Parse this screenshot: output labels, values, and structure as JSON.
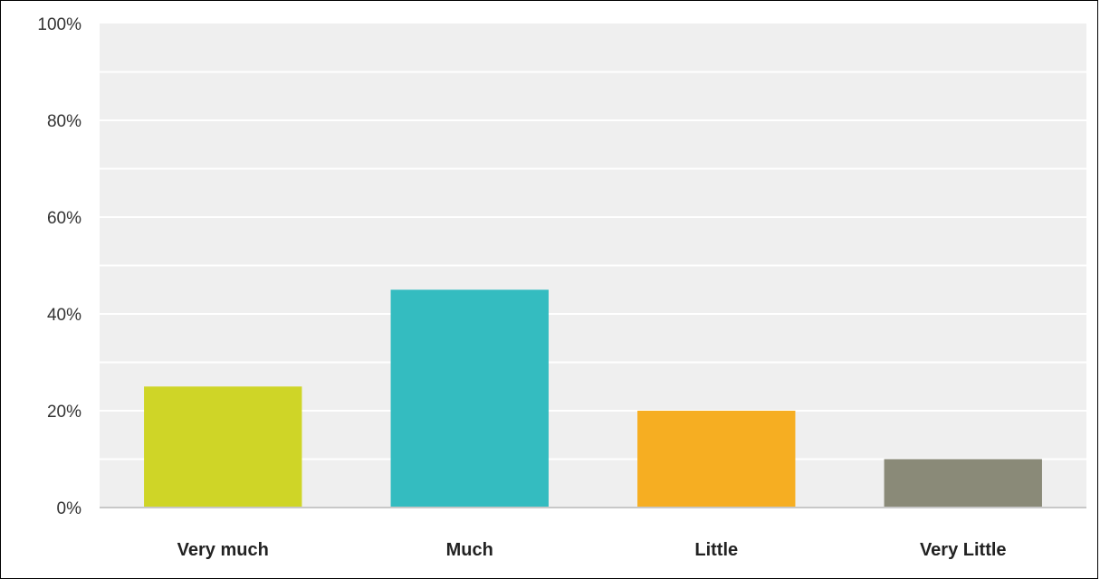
{
  "chart_data": {
    "type": "bar",
    "categories": [
      "Very much",
      "Much",
      "Little",
      "Very Little"
    ],
    "values": [
      25,
      45,
      20,
      10
    ],
    "colors": [
      "#cfd527",
      "#34bcc0",
      "#f6ae22",
      "#8a8a78"
    ],
    "title": "",
    "xlabel": "",
    "ylabel": "",
    "ylim": [
      0,
      100
    ],
    "yticks": [
      0,
      20,
      40,
      60,
      80,
      100
    ],
    "ytick_labels": [
      "0%",
      "20%",
      "40%",
      "60%",
      "80%",
      "100%"
    ],
    "grid": true,
    "legend": "none"
  }
}
